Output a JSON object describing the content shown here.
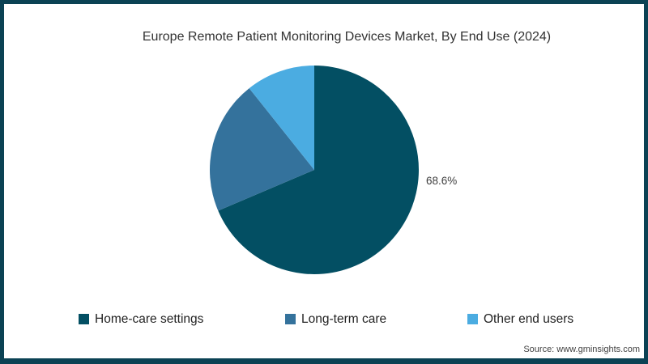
{
  "frame": {
    "background": "#ffffff",
    "border_color": "#0b4254",
    "source_label": "Source: www.gminsights.com"
  },
  "chart_data": {
    "type": "pie",
    "title": "Europe Remote Patient Monitoring Devices Market, By End Use (2024)",
    "categories": [
      "Home-care settings",
      "Long-term care",
      "Other end users"
    ],
    "values": [
      68.6,
      20.7,
      10.7
    ],
    "colors": [
      "#034f63",
      "#34729c",
      "#4bace1"
    ],
    "data_labels": [
      "68.6%",
      "",
      ""
    ],
    "start_angle_deg": 0,
    "direction": "clockwise",
    "legend_position": "bottom",
    "labeled_value_note": "68.6%"
  }
}
